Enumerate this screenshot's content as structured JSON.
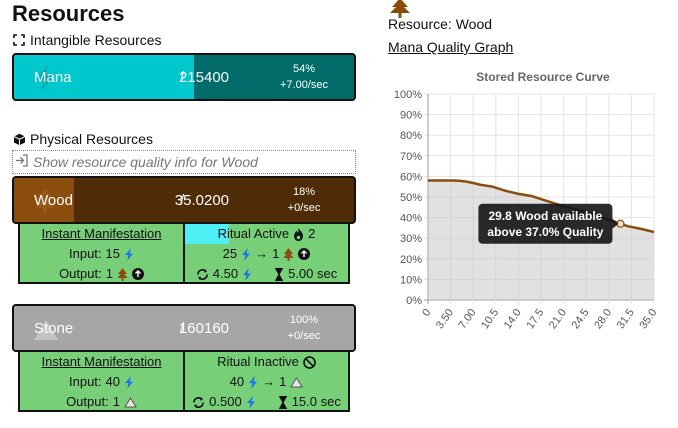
{
  "page": {
    "title": "Resources"
  },
  "intangible": {
    "title": "Intangible Resources"
  },
  "mana": {
    "name": "Mana",
    "current": "215",
    "slash": "/",
    "max": "400",
    "percent": "54%",
    "rate": "+7.00/sec",
    "fill_fraction": 0.54
  },
  "physical": {
    "title": "Physical Resources",
    "quality_link": "Show resource quality info for Wood"
  },
  "wood": {
    "name": "Wood",
    "current": "35.0",
    "slash": "/",
    "max": "200",
    "percent": "18%",
    "rate": "+0/sec",
    "fill_fraction": 0.18,
    "instant": {
      "title": "Instant Manifestation",
      "input_label": "Input:",
      "input_value": "15",
      "output_label": "Output:",
      "output_value": "1"
    },
    "ritual": {
      "title": "Ritual Active",
      "count": "2",
      "input": "25",
      "arrow": "→",
      "output": "1",
      "cost": "4.50",
      "time": "5.00 sec"
    }
  },
  "stone": {
    "name": "Stone",
    "current": "160",
    "slash": "/",
    "max": "160",
    "percent": "100%",
    "rate": "+0/sec",
    "fill_fraction": 1.0,
    "instant": {
      "title": "Instant Manifestation",
      "input_label": "Input:",
      "input_value": "40",
      "output_label": "Output:",
      "output_value": "1"
    },
    "ritual": {
      "title": "Ritual Inactive",
      "input": "40",
      "arrow": "→",
      "output": "1",
      "cost": "0.500",
      "time": "15.0 sec"
    }
  },
  "right": {
    "resource_label": "Resource: Wood",
    "graph_link": "Mana Quality Graph"
  },
  "colors": {
    "mana_fill": "#00c8cc",
    "mana_bg": "#016b6a",
    "wood_fill": "#8a4d0d",
    "wood_bg": "#4d2c07",
    "stone": "#a6a6a6",
    "panel_green": "#77cf77",
    "curve": "#8b4d0d"
  },
  "chart_data": {
    "type": "area",
    "title": "Stored Resource Curve",
    "xlabel": "",
    "ylabel": "",
    "x_ticks": [
      "0",
      "3.50",
      "7.00",
      "10.5",
      "14.0",
      "17.5",
      "21.0",
      "24.5",
      "28.0",
      "31.5",
      "35.0"
    ],
    "y_ticks": [
      "0%",
      "10%",
      "20%",
      "30%",
      "40%",
      "50%",
      "60%",
      "70%",
      "80%",
      "90%",
      "100%"
    ],
    "xlim": [
      0,
      35
    ],
    "ylim": [
      0,
      100
    ],
    "grid": true,
    "series": [
      {
        "x": [
          0,
          2,
          4,
          5,
          6,
          7,
          8,
          10,
          12,
          14,
          16,
          17.5,
          19,
          21,
          23,
          24.5,
          26,
          28,
          29.8,
          31,
          33,
          35
        ],
        "y": [
          58,
          58,
          58,
          57.8,
          57.5,
          56.8,
          56,
          55,
          53,
          51.5,
          50.5,
          49,
          47.5,
          45.5,
          44,
          42.5,
          41,
          39,
          37,
          35.8,
          34.5,
          33
        ]
      }
    ],
    "tooltip": {
      "line1": "29.8 Wood available",
      "line2": "above 37.0% Quality",
      "x": 29.8,
      "y": 37.0
    }
  }
}
